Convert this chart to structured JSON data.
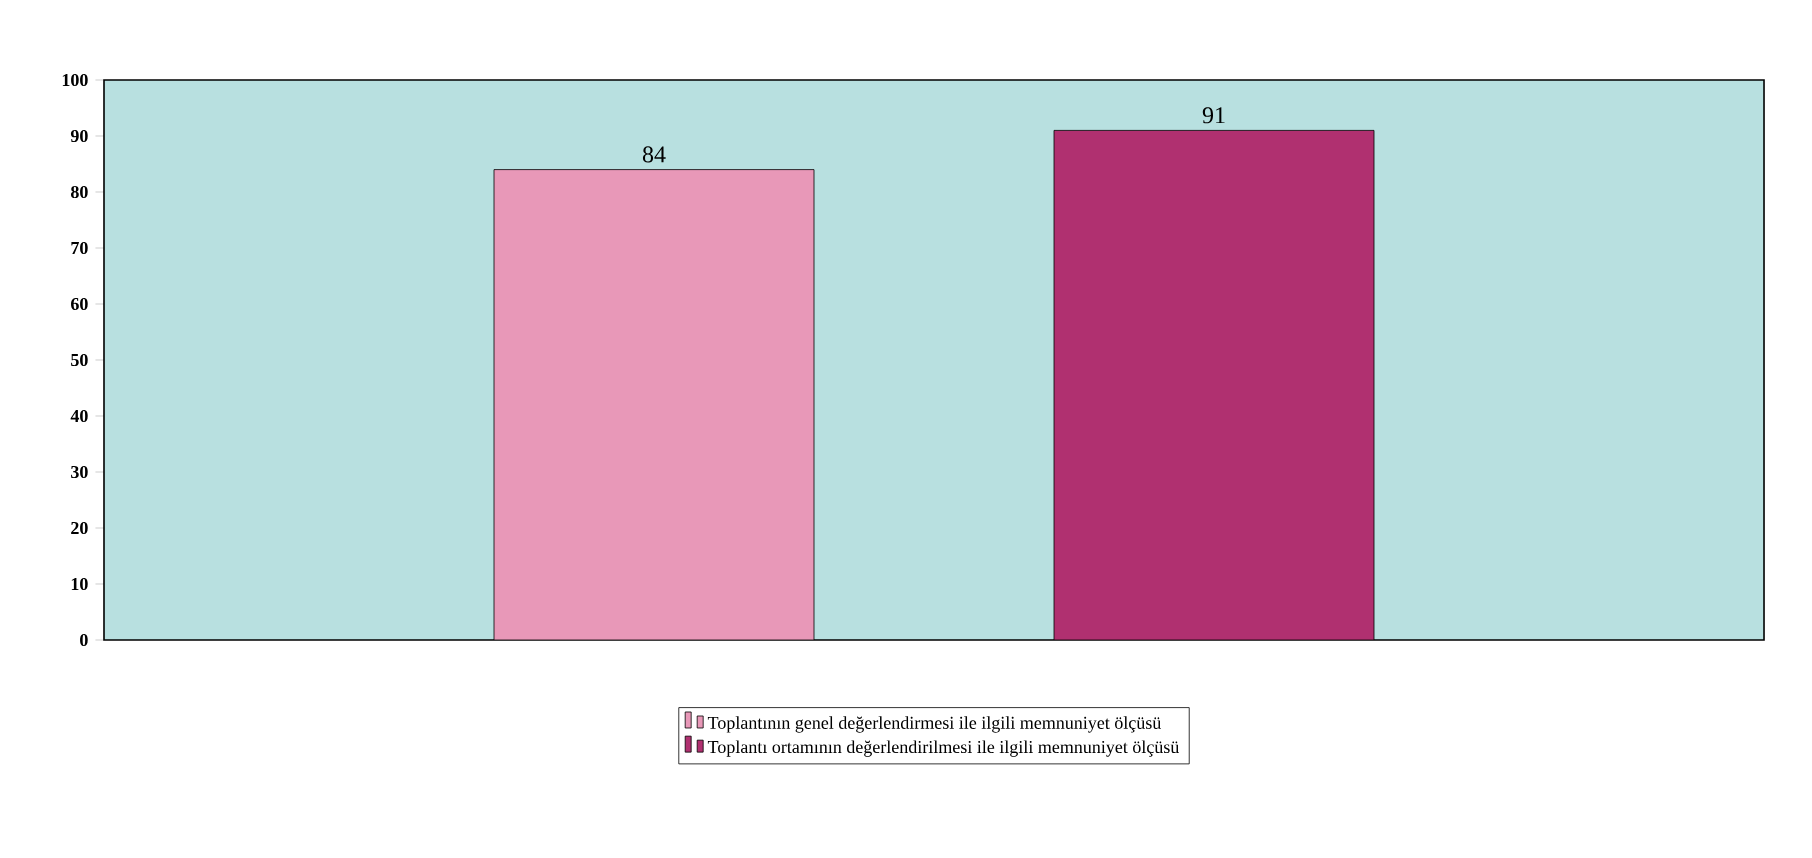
{
  "chart_data": {
    "type": "bar",
    "categories": [
      null
    ],
    "series": [
      {
        "name": "Toplantının genel değerlendirmesi ile ilgili memnuniyet ölçüsü",
        "color": "#e898b8",
        "values": [
          84
        ]
      },
      {
        "name": "Toplantı ortamının değerlendirilmesi ile ilgili memnuniyet ölçüsü",
        "color": "#b03070",
        "values": [
          91
        ]
      }
    ],
    "ylim": [
      0,
      100
    ],
    "yticks": [
      0,
      10,
      20,
      30,
      40,
      50,
      60,
      70,
      80,
      90,
      100
    ],
    "data_labels": true,
    "legend": "bottom"
  }
}
